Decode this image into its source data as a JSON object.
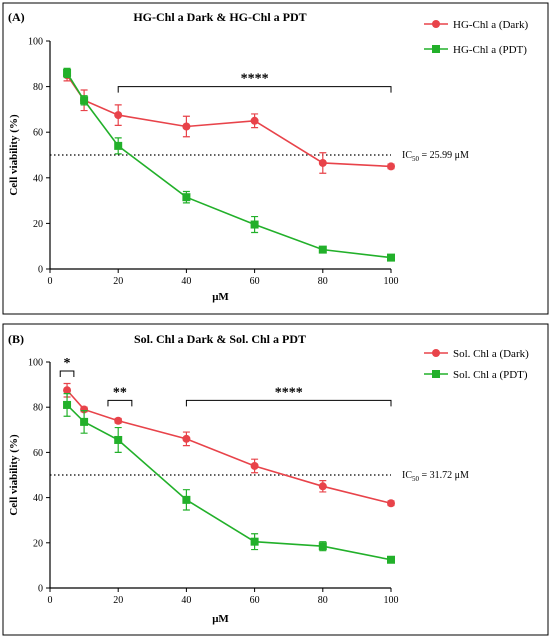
{
  "chart_data": [
    {
      "type": "line",
      "panel_label": "(A)",
      "title": "HG-Chl a Dark & HG-Chl a PDT",
      "xlabel": "μM",
      "ylabel": "Cell viability (%)",
      "xlim": [
        0,
        100
      ],
      "ylim": [
        0,
        100
      ],
      "xticks": [
        0,
        20,
        40,
        60,
        80,
        100
      ],
      "yticks": [
        0,
        20,
        40,
        60,
        80,
        100
      ],
      "x_tick_labels": [
        "0",
        "20",
        "40",
        "60",
        "80",
        "100"
      ],
      "y_tick_labels": [
        "0",
        "20",
        "40",
        "60",
        "80",
        "100"
      ],
      "grid": false,
      "legend_position": "top-right",
      "reference_line": {
        "y": 50,
        "style": "dotted"
      },
      "annotation": {
        "prefix": "IC",
        "subscript": "50",
        "text": " = 25.99 μM"
      },
      "significance": [
        {
          "x_start": 20,
          "x_end": 100,
          "y": 80,
          "label": "****"
        }
      ],
      "series": [
        {
          "name": "HG-Chl a (Dark)",
          "marker": "circle",
          "color": "#e8434a",
          "x": [
            5,
            10,
            20,
            40,
            60,
            80,
            100
          ],
          "y": [
            85,
            74,
            67.5,
            62.5,
            65,
            46.5,
            45
          ],
          "err": [
            2.5,
            4.5,
            4.5,
            4.5,
            3,
            4.5,
            1
          ]
        },
        {
          "name": "HG-Chl a (PDT)",
          "marker": "square",
          "color": "#22b02a",
          "x": [
            5,
            10,
            20,
            40,
            60,
            80,
            100
          ],
          "y": [
            86,
            74,
            54,
            31.5,
            19.5,
            8.5,
            5
          ],
          "err": [
            2,
            2,
            3.5,
            2.5,
            3.5,
            1,
            1
          ]
        }
      ]
    },
    {
      "type": "line",
      "panel_label": "(B)",
      "title": "Sol. Chl a Dark & Sol. Chl a PDT",
      "xlabel": "μM",
      "ylabel": "Cell viability (%)",
      "xlim": [
        0,
        100
      ],
      "ylim": [
        0,
        100
      ],
      "xticks": [
        0,
        20,
        40,
        60,
        80,
        100
      ],
      "yticks": [
        0,
        20,
        40,
        60,
        80,
        100
      ],
      "x_tick_labels": [
        "0",
        "20",
        "40",
        "60",
        "80",
        "100"
      ],
      "y_tick_labels": [
        "0",
        "20",
        "40",
        "60",
        "80",
        "100"
      ],
      "grid": false,
      "legend_position": "top-right",
      "reference_line": {
        "y": 50,
        "style": "dotted"
      },
      "annotation": {
        "prefix": "IC",
        "subscript": "50",
        "text": " = 31.72 μM"
      },
      "significance": [
        {
          "x_start": 3,
          "x_end": 7,
          "y": 96,
          "label": "*"
        },
        {
          "x_start": 17,
          "x_end": 24,
          "y": 83,
          "label": "**"
        },
        {
          "x_start": 40,
          "x_end": 100,
          "y": 83,
          "label": "****"
        }
      ],
      "series": [
        {
          "name": "Sol. Chl a (Dark)",
          "marker": "circle",
          "color": "#e8434a",
          "x": [
            5,
            10,
            20,
            40,
            60,
            80,
            100
          ],
          "y": [
            87.5,
            79,
            74,
            66,
            54,
            45,
            37.5
          ],
          "err": [
            3,
            1,
            1,
            3,
            3,
            2.5,
            1
          ]
        },
        {
          "name": "Sol. Chl a (PDT)",
          "marker": "square",
          "color": "#22b02a",
          "x": [
            5,
            10,
            20,
            40,
            60,
            80,
            100
          ],
          "y": [
            81,
            73.5,
            65.5,
            39,
            20.5,
            18.5,
            12.5
          ],
          "err": [
            5,
            5,
            5.5,
            4.5,
            3.5,
            2,
            1
          ]
        }
      ]
    }
  ]
}
